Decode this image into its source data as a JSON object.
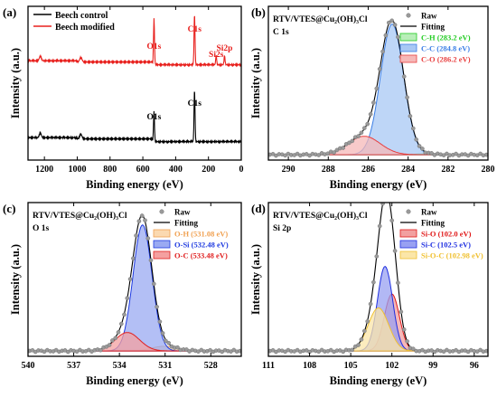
{
  "chart_data": [
    {
      "type": "line",
      "panel": "(a)",
      "xlabel": "Binding energy (eV)",
      "ylabel": "Intensity (a.u.)",
      "xlim": [
        1300,
        0
      ],
      "xticks": [
        1200,
        1000,
        800,
        600,
        400,
        200,
        0
      ],
      "xtick_labels": [
        "1200",
        "1000",
        "800",
        "600",
        "400",
        "200",
        "0"
      ],
      "legend": [
        "Beech control",
        "Beech modified"
      ],
      "series_colors": [
        "#000000",
        "#e8211e"
      ],
      "annotations": [
        {
          "text": "O1s",
          "x": 532
        },
        {
          "text": "C1s",
          "x": 285
        },
        {
          "text": "Si2s",
          "x": 153
        },
        {
          "text": "Si2p",
          "x": 102
        },
        {
          "text": "O1s",
          "x": 532
        },
        {
          "text": "C1s",
          "x": 285
        }
      ],
      "series": [
        {
          "name": "Beech control",
          "baseline": 0.12,
          "peaks": [
            {
              "center": 285,
              "height": 0.34,
              "width": 3
            },
            {
              "center": 532,
              "height": 0.2,
              "width": 3
            },
            {
              "center": 978,
              "height": 0.03,
              "width": 7
            },
            {
              "center": 1225,
              "height": 0.03,
              "width": 6
            }
          ]
        },
        {
          "name": "Beech modified",
          "baseline": 0.62,
          "peaks": [
            {
              "center": 285,
              "height": 0.33,
              "width": 3
            },
            {
              "center": 532,
              "height": 0.3,
              "width": 3
            },
            {
              "center": 153,
              "height": 0.06,
              "width": 3
            },
            {
              "center": 102,
              "height": 0.06,
              "width": 3
            },
            {
              "center": 978,
              "height": 0.03,
              "width": 7
            },
            {
              "center": 1225,
              "height": 0.03,
              "width": 6
            }
          ]
        }
      ]
    },
    {
      "type": "line",
      "panel": "(b)",
      "title": "RTV/VTES@Cu₂(OH)₃Cl",
      "subtitle": "C 1s",
      "xlabel": "Binding energy (eV)",
      "ylabel": "Intensity (a.u.)",
      "xlim": [
        291,
        280
      ],
      "xticks": [
        290,
        288,
        286,
        284,
        282,
        280
      ],
      "xtick_labels": [
        "290",
        "288",
        "286",
        "284",
        "282",
        "280"
      ],
      "raw_label": "Raw",
      "fit_label": "Fitting",
      "components": [
        {
          "name": "C-H (283.2 eV)",
          "center": 283.2,
          "height": 0.005,
          "width": 0.5,
          "color": "#22cc22",
          "fill": "#b8eeb8"
        },
        {
          "name": "C-C (284.8 eV)",
          "center": 284.8,
          "height": 0.85,
          "width": 0.58,
          "color": "#3a7ee6",
          "fill": "#a8c8f4"
        },
        {
          "name": "C-O (286.2 eV)",
          "center": 286.2,
          "height": 0.12,
          "width": 0.8,
          "color": "#e84040",
          "fill": "#f6b8b8"
        }
      ]
    },
    {
      "type": "line",
      "panel": "(c)",
      "title": "RTV/VTES@Cu₂(OH)₃Cl",
      "subtitle": "O 1s",
      "xlabel": "Binding energy (eV)",
      "ylabel": "Intensity (a.u.)",
      "xlim": [
        540,
        526
      ],
      "xticks": [
        540,
        537,
        534,
        531,
        528
      ],
      "xtick_labels": [
        "540",
        "537",
        "534",
        "531",
        "528"
      ],
      "raw_label": "Raw",
      "fit_label": "Fitting",
      "components": [
        {
          "name": "O-H (531.08 eV)",
          "center": 531.08,
          "height": 0.03,
          "width": 0.8,
          "color": "#f0a050",
          "fill": "#fbd9b0"
        },
        {
          "name": "O-Si (532.48 eV)",
          "center": 532.48,
          "height": 0.82,
          "width": 0.62,
          "color": "#1e3ae0",
          "fill": "#9aaaf2"
        },
        {
          "name": "O-C (533.48 eV)",
          "center": 533.48,
          "height": 0.12,
          "width": 0.8,
          "color": "#e02020",
          "fill": "#f4a0a0"
        }
      ]
    },
    {
      "type": "line",
      "panel": "(d)",
      "title": "RTV/VTES@Cu₂(OH)₃Cl",
      "subtitle": "Si 2p",
      "xlabel": "Binding energy (eV)",
      "ylabel": "Intensity (a.u.)",
      "xlim": [
        111,
        95
      ],
      "xticks": [
        111,
        108,
        105,
        102,
        99,
        96
      ],
      "xtick_labels": [
        "111",
        "108",
        "105",
        "102",
        "99",
        "96"
      ],
      "raw_label": "Raw",
      "fit_label": "Fitting",
      "components": [
        {
          "name": "Si-O (102.0 eV)",
          "center": 102.0,
          "height": 0.37,
          "width": 0.55,
          "color": "#e01818",
          "fill": "#f2a0a0"
        },
        {
          "name": "Si-C (102.5 eV)",
          "center": 102.5,
          "height": 0.55,
          "width": 0.55,
          "color": "#1e2ee0",
          "fill": "#98a0f2"
        },
        {
          "name": "Si-O-C (102.98 eV)",
          "center": 102.98,
          "height": 0.28,
          "width": 0.75,
          "color": "#f0c030",
          "fill": "#fbe6a8"
        }
      ]
    }
  ]
}
